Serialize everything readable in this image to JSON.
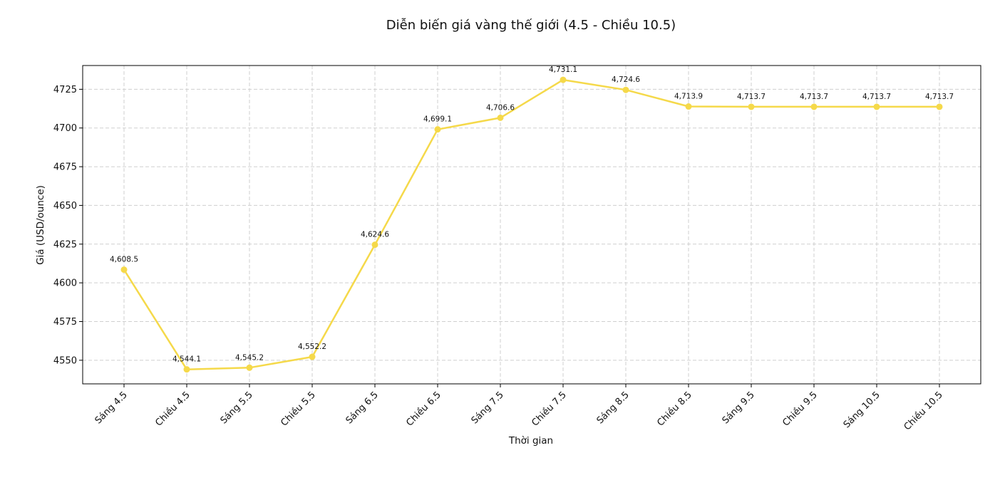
{
  "chart_data": {
    "type": "line",
    "title": "Diễn biến giá vàng thế giới (4.5 - Chiều 10.5)",
    "xlabel": "Thời gian",
    "ylabel": "Giá (USD/ounce)",
    "categories": [
      "Sáng 4.5",
      "Chiều 4.5",
      "Sáng 5.5",
      "Chiều 5.5",
      "Sáng 6.5",
      "Chiều 6.5",
      "Sáng 7.5",
      "Chiều 7.5",
      "Sáng 8.5",
      "Chiều 8.5",
      "Sáng 9.5",
      "Chiều 9.5",
      "Sáng 10.5",
      "Chiều 10.5"
    ],
    "series": [
      {
        "values": [
          4608.5,
          4544.1,
          4545.2,
          4552.2,
          4624.6,
          4699.1,
          4706.6,
          4731.1,
          4724.6,
          4713.9,
          4713.7,
          4713.7,
          4713.7,
          4713.7
        ],
        "labels": [
          "4,608.5",
          "4,544.1",
          "4,545.2",
          "4,552.2",
          "4,624.6",
          "4,699.1",
          "4,706.6",
          "4,731.1",
          "4,724.6",
          "4,713.9",
          "4,713.7",
          "4,713.7",
          "4,713.7",
          "4,713.7"
        ],
        "color": "#f5d94a"
      }
    ],
    "yticks": [
      4550,
      4575,
      4600,
      4625,
      4650,
      4675,
      4700,
      4725
    ],
    "ylim": [
      4534.75,
      4740.35
    ],
    "grid": true,
    "legend": "none"
  }
}
